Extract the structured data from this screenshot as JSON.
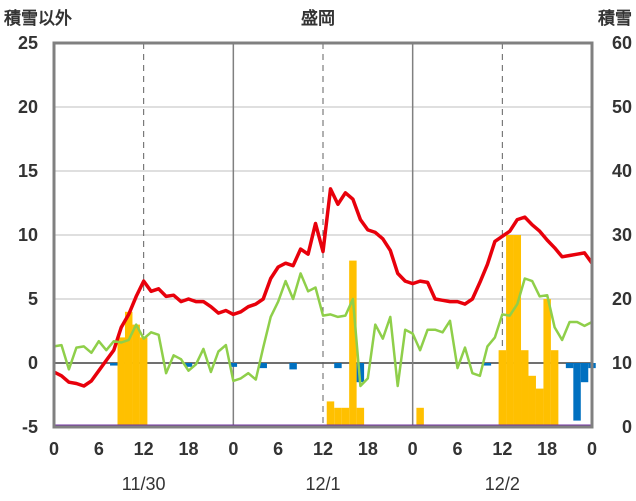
{
  "title": "盛岡",
  "left_axis_title": "積雪以外",
  "right_axis_title": "積雪",
  "colors": {
    "temperature": "#e8000b",
    "humidity_like": "#8fcf4a",
    "snow_positive": "#ffc000",
    "snow_negative": "#0070c0",
    "frame": "#808080",
    "baseline": "#7030a0"
  },
  "chart_data": {
    "type": "line",
    "x_unit": "hours from 11/30 00:00",
    "xlim": [
      0,
      72
    ],
    "x_ticks": [
      0,
      6,
      12,
      18,
      24,
      30,
      36,
      42,
      48,
      54,
      60,
      66,
      72
    ],
    "x_tick_labels": [
      "0",
      "6",
      "12",
      "18",
      "0",
      "6",
      "12",
      "18",
      "0",
      "6",
      "12",
      "18",
      "0"
    ],
    "dates": [
      {
        "label": "11/30",
        "hour": 12
      },
      {
        "label": "12/1",
        "hour": 36
      },
      {
        "label": "12/2",
        "hour": 60
      }
    ],
    "ylim_left": [
      -5,
      25
    ],
    "y_ticks_left": [
      -5,
      0,
      5,
      10,
      15,
      20,
      25
    ],
    "ylim_right": [
      0,
      60
    ],
    "y_ticks_right": [
      0,
      10,
      20,
      30,
      40,
      50,
      60
    ],
    "grid_dashed_hours": [
      12,
      36,
      60
    ],
    "grid_solid_hours": [
      24,
      48
    ],
    "series": [
      {
        "kind": "line",
        "color": "#e8000b",
        "x": [
          0,
          1,
          2,
          3,
          4,
          5,
          6,
          7,
          8,
          9,
          10,
          11,
          12,
          13,
          14,
          15,
          16,
          17,
          18,
          19,
          20,
          21,
          22,
          23,
          24,
          25,
          26,
          27,
          28,
          29,
          30,
          31,
          32,
          33,
          34,
          35,
          36,
          37,
          38,
          39,
          40,
          41,
          42,
          43,
          44,
          45,
          46,
          47,
          48,
          49,
          50,
          51,
          52,
          53,
          54,
          55,
          56,
          57,
          58,
          59,
          60,
          61,
          62,
          63,
          64,
          65,
          66,
          67,
          68,
          69,
          70,
          71,
          72
        ],
        "values": [
          -0.7,
          -1.0,
          -1.5,
          -1.6,
          -1.8,
          -1.4,
          -0.6,
          0.2,
          1.0,
          2.8,
          3.8,
          5.2,
          6.4,
          5.6,
          5.8,
          5.2,
          5.3,
          4.8,
          5.0,
          4.8,
          4.8,
          4.4,
          3.9,
          4.1,
          3.8,
          4.0,
          4.4,
          4.6,
          5.0,
          6.6,
          7.5,
          7.8,
          7.6,
          8.9,
          8.5,
          10.9,
          8.7,
          13.6,
          12.4,
          13.3,
          12.8,
          11.2,
          10.4,
          10.2,
          9.7,
          8.8,
          7.0,
          6.4,
          6.2,
          6.4,
          6.3,
          5.0,
          4.9,
          4.8,
          4.8,
          4.6,
          5.0,
          6.3,
          7.7,
          9.5,
          9.9,
          10.3,
          11.2,
          11.4,
          10.8,
          10.3,
          9.6,
          9.0,
          8.3,
          8.4,
          8.5,
          8.6,
          7.8
        ]
      },
      {
        "kind": "line",
        "color": "#8fcf4a",
        "x": [
          0,
          1,
          2,
          3,
          4,
          5,
          6,
          7,
          8,
          9,
          10,
          11,
          12,
          13,
          14,
          15,
          16,
          17,
          18,
          19,
          20,
          21,
          22,
          23,
          24,
          25,
          26,
          27,
          28,
          29,
          30,
          31,
          32,
          33,
          34,
          35,
          36,
          37,
          38,
          39,
          40,
          41,
          42,
          43,
          44,
          45,
          46,
          47,
          48,
          49,
          50,
          51,
          52,
          53,
          54,
          55,
          56,
          57,
          58,
          59,
          60,
          61,
          62,
          63,
          64,
          65,
          66,
          67,
          68,
          69,
          70,
          71,
          72
        ],
        "values": [
          1.3,
          1.4,
          -0.5,
          1.2,
          1.3,
          0.8,
          1.7,
          1.0,
          1.7,
          1.6,
          1.8,
          3.0,
          1.9,
          2.4,
          2.2,
          -0.8,
          0.6,
          0.3,
          -0.6,
          -0.1,
          1.1,
          -0.7,
          0.9,
          1.4,
          -1.4,
          -1.2,
          -0.8,
          -1.3,
          1.2,
          3.6,
          4.8,
          6.4,
          5.0,
          7.0,
          5.6,
          5.9,
          3.7,
          3.8,
          3.6,
          3.7,
          5.0,
          -1.8,
          -1.2,
          3.0,
          1.9,
          3.6,
          -1.8,
          2.6,
          2.3,
          1.0,
          2.6,
          2.6,
          2.4,
          3.3,
          -0.4,
          1.2,
          -0.8,
          -1.0,
          1.3,
          2.0,
          3.8,
          3.7,
          4.6,
          6.6,
          6.4,
          5.2,
          5.3,
          2.8,
          1.8,
          3.2,
          3.2,
          2.9,
          3.2
        ]
      },
      {
        "kind": "bar",
        "axis": "right",
        "color": "#ffc000",
        "x": [
          9,
          10,
          11,
          12,
          37,
          38,
          39,
          40,
          41,
          49,
          60,
          61,
          62,
          63,
          64,
          65,
          66,
          67
        ],
        "values": [
          14,
          18,
          16,
          14,
          4,
          3,
          3,
          26,
          3,
          3,
          12,
          30,
          30,
          12,
          8,
          6,
          20,
          12
        ]
      },
      {
        "kind": "bar",
        "axis": "left",
        "color": "#0070c0",
        "x": [
          8,
          18,
          24,
          28,
          32,
          38,
          41,
          58,
          69,
          70,
          71,
          72
        ],
        "values": [
          -0.2,
          -0.3,
          -0.3,
          -0.4,
          -0.5,
          -0.4,
          -1.5,
          -0.2,
          -0.4,
          -4.5,
          -1.5,
          -0.4
        ]
      }
    ]
  }
}
